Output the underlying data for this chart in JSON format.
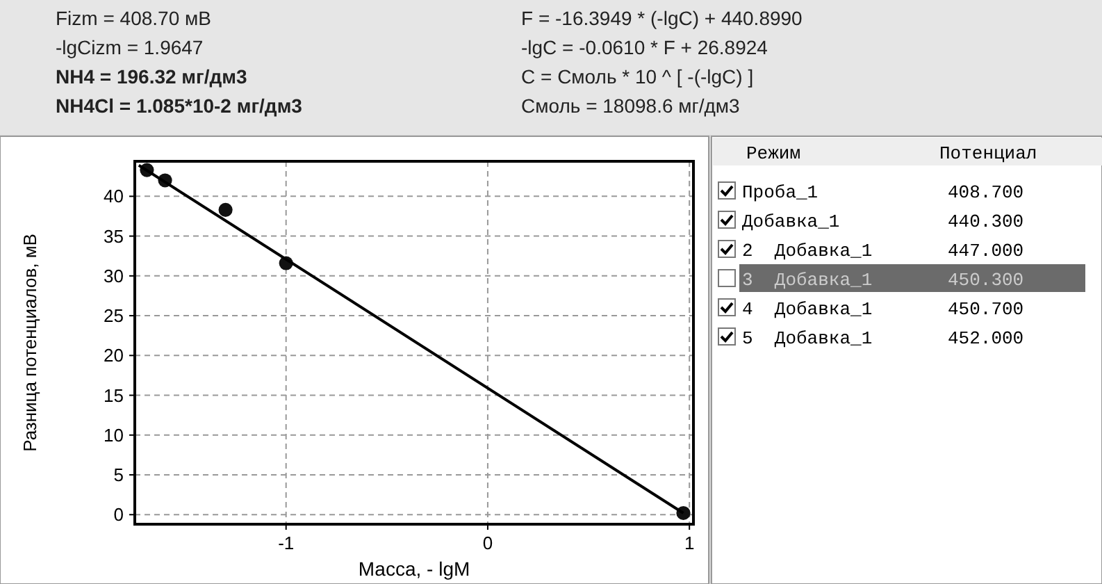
{
  "chart_data": [
    {
      "type": "scatter",
      "xlabel": "Масса, - lgM",
      "ylabel": "Разница потенциалов,  мВ",
      "annotations": [
        "Fizm = 408.70 мВ",
        "-lgCizm = 1.9647",
        "NH4 = 196.32 мг/дм3",
        "NH4Cl = 1.085*10-2 мг/дм3",
        "F = -16.3949 * (-lgC) + 440.8990",
        "-lgC = -0.0610 * F + 26.8924",
        "C = Смоль * 10 ^ [ -(-lgC) ]",
        "Смоль = 18098.6 мг/дм3"
      ],
      "series": [
        {
          "type": "scatter",
          "marker": "circle",
          "color": "#111111",
          "x": [
            -1.69,
            -1.6,
            -1.3,
            -1.0,
            0.97
          ],
          "values": [
            43.3,
            42.0,
            38.3,
            31.6,
            0.2
          ]
        },
        {
          "type": "line",
          "color": "#000000",
          "x": [
            -1.73,
            0.97
          ],
          "values": [
            43.9,
            0.2
          ]
        }
      ],
      "xlim": [
        -1.75,
        1.02
      ],
      "ylim": [
        -1.2,
        44.4
      ],
      "xticks": [
        -1,
        0,
        1
      ],
      "yticks": [
        0,
        5,
        10,
        15,
        20,
        25,
        30,
        35,
        40
      ],
      "grid": true
    },
    {
      "type": "other",
      "annotations": [
        "Режим",
        "Потенциал"
      ],
      "categories": [
        "Проба_1",
        "Добавка_1",
        "2  Добавка_1",
        "3  Добавка_1",
        "4  Добавка_1",
        "5  Добавка_1"
      ],
      "value_labels": [
        "408.700",
        "440.300",
        "447.000",
        "450.300",
        "450.700",
        "452.000"
      ],
      "colors": [
        "#ffffff",
        "#ffffff",
        "#ffffff",
        "#6b6b6b",
        "#ffffff",
        "#ffffff"
      ]
    }
  ]
}
